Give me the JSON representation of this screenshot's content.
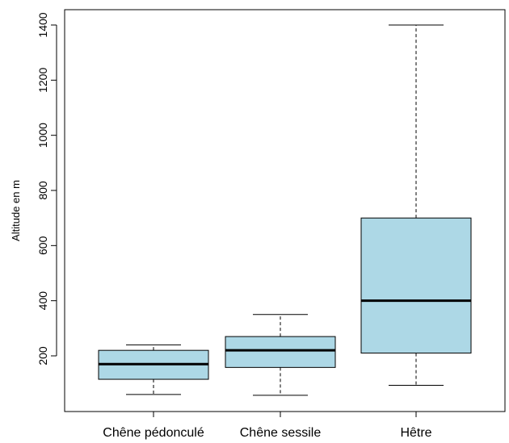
{
  "chart_data": {
    "type": "boxplot",
    "title": "",
    "xlabel": "",
    "ylabel": "Altitude en m",
    "ylim": [
      0,
      1400
    ],
    "yticks": [
      200,
      400,
      600,
      800,
      1000,
      1200,
      1400
    ],
    "grid": false,
    "box_fill": "#add8e6",
    "box_stroke": "#000000",
    "categories": [
      "Chêne pédonculé",
      "Chêne sessile",
      "Hêtre"
    ],
    "boxes": [
      {
        "category": "Chêne pédonculé",
        "whisker_low": 60,
        "q1": 115,
        "median": 170,
        "q3": 220,
        "whisker_high": 240
      },
      {
        "category": "Chêne sessile",
        "whisker_low": 57,
        "q1": 158,
        "median": 220,
        "q3": 270,
        "whisker_high": 350
      },
      {
        "category": "Hêtre",
        "whisker_low": 93,
        "q1": 210,
        "median": 400,
        "q3": 700,
        "whisker_high": 1400
      }
    ]
  }
}
